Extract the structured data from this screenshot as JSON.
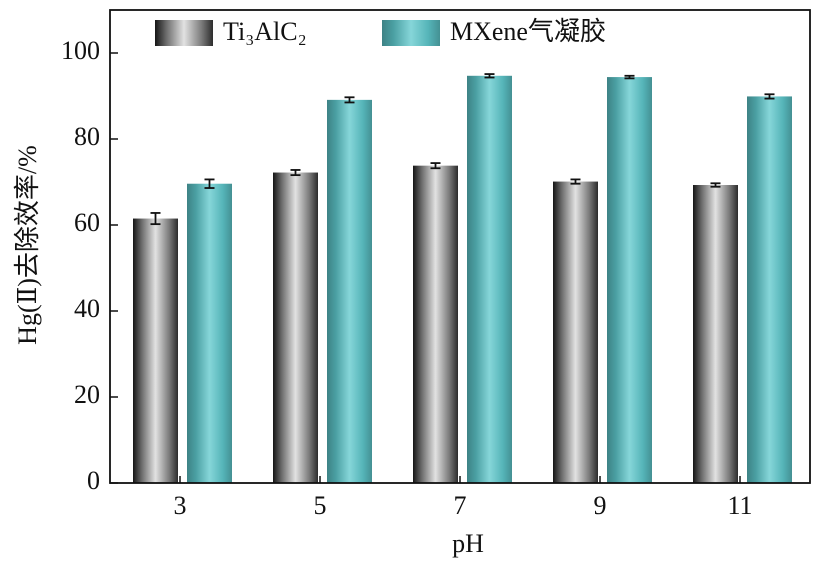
{
  "chart_data": {
    "type": "bar",
    "categories": [
      "3",
      "5",
      "7",
      "9",
      "11"
    ],
    "x_label": "pH",
    "y_label": "Hg(Ⅱ)去除效率/%",
    "series": [
      {
        "name": "Ti₃AlC₂",
        "color": "#8a8a8a",
        "values": [
          61.5,
          72.2,
          73.8,
          70.1,
          69.3
        ],
        "errors": [
          1.3,
          0.6,
          0.6,
          0.5,
          0.4
        ]
      },
      {
        "name": "MXene气凝胶",
        "color": "#5ec8cc",
        "values": [
          69.6,
          89.1,
          94.7,
          94.4,
          89.9
        ],
        "errors": [
          1.0,
          0.6,
          0.4,
          0.3,
          0.5
        ]
      }
    ],
    "ylim": [
      0,
      110
    ],
    "yticks": [
      0,
      20,
      40,
      60,
      80,
      100
    ],
    "legend": "top-left"
  }
}
